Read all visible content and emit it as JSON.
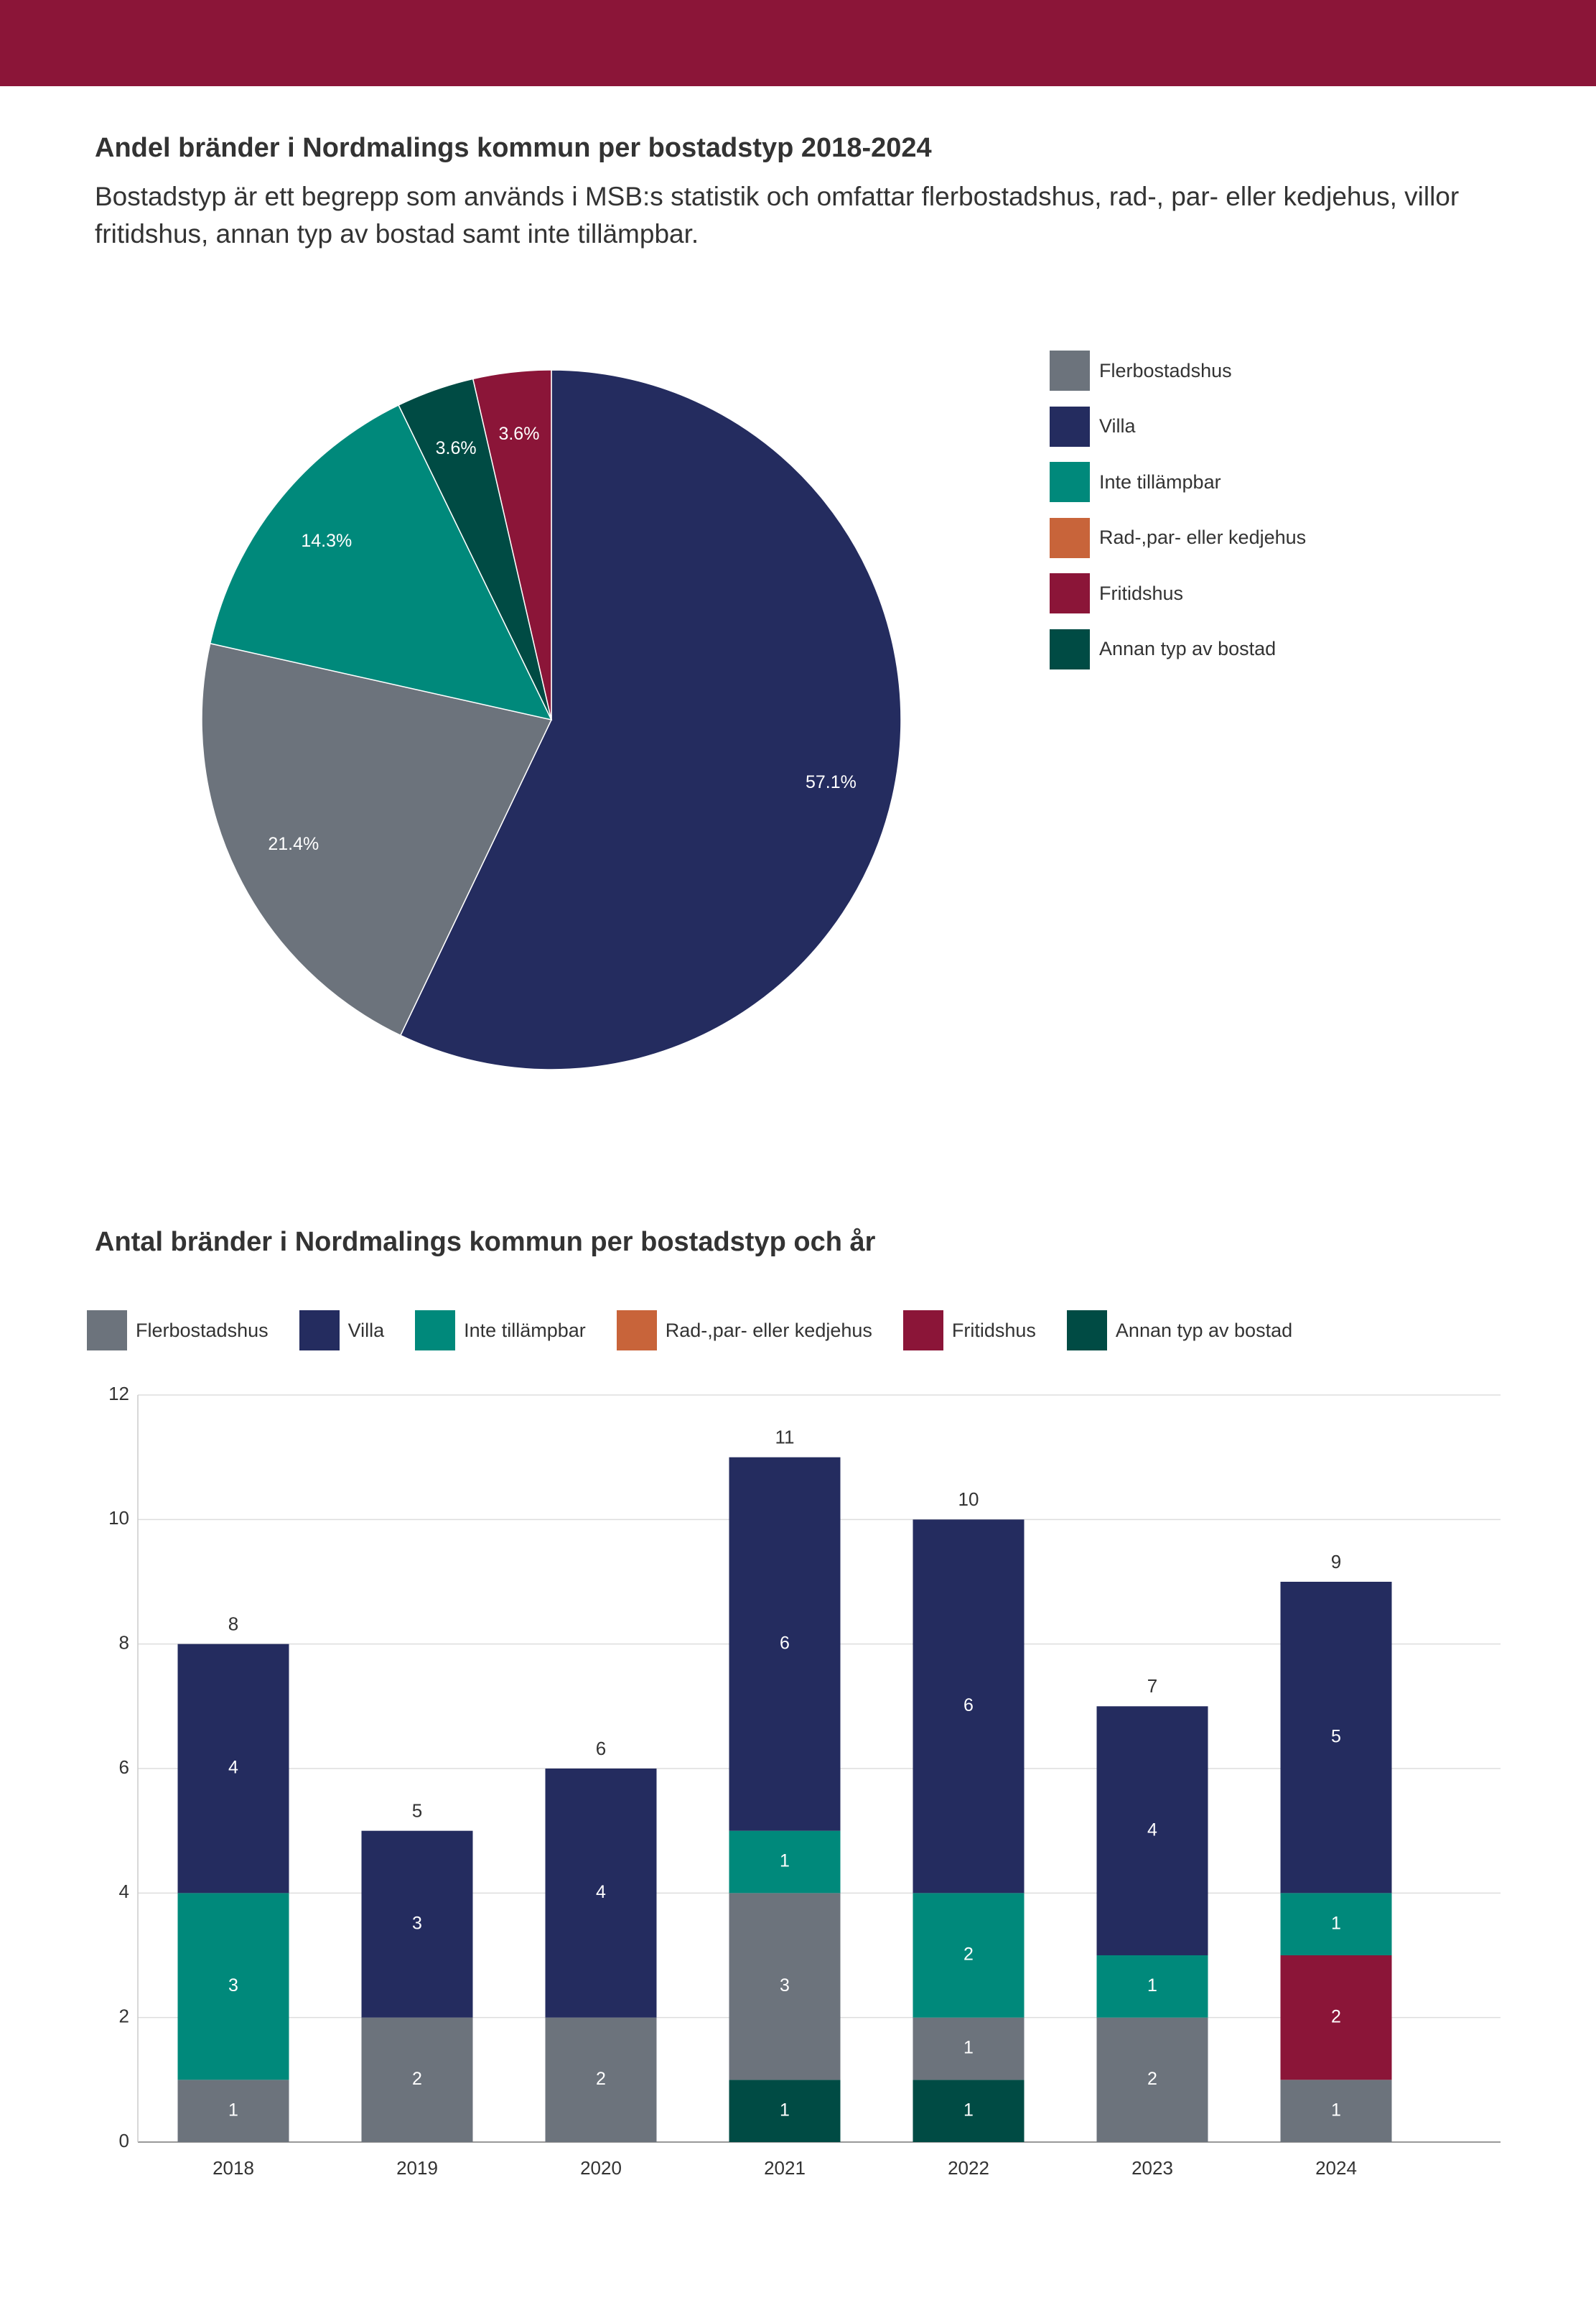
{
  "header": {
    "bar_color": "#8b1538"
  },
  "section1": {
    "title": "Andel bränder i Nordmalings kommun per bostadstyp 2018-2024",
    "subtitle": "Bostadstyp är ett begrepp som används i MSB:s statistik och omfattar flerbostadshus, rad-, par- eller kedjehus, villor fritidshus, annan typ av bostad samt inte tillämpbar."
  },
  "section2": {
    "title": "Antal bränder i Nordmalings kommun per bostadstyp och år"
  },
  "colors": {
    "Flerbostadshus": "#6c737c",
    "Villa": "#242c5f",
    "Inte tillämpbar": "#00897b",
    "Rad-,par- eller kedjehus": "#c8643a",
    "Fritidshus": "#8b1538",
    "Annan typ av bostad": "#004b44"
  },
  "chart_data": [
    {
      "type": "pie",
      "title": "Andel bränder i Nordmalings kommun per bostadstyp 2018-2024",
      "legend_position": "right",
      "legend": [
        "Flerbostadshus",
        "Villa",
        "Inte tillämpbar",
        "Rad-,par- eller kedjehus",
        "Fritidshus",
        "Annan typ av bostad"
      ],
      "slices": [
        {
          "name": "Villa",
          "value": 57.1,
          "label": "57.1%"
        },
        {
          "name": "Flerbostadshus",
          "value": 21.4,
          "label": "21.4%"
        },
        {
          "name": "Inte tillämpbar",
          "value": 14.3,
          "label": "14.3%"
        },
        {
          "name": "Annan typ av bostad",
          "value": 3.6,
          "label": "3.6%"
        },
        {
          "name": "Fritidshus",
          "value": 3.6,
          "label": "3.6%"
        }
      ]
    },
    {
      "type": "bar",
      "stacked": true,
      "title": "Antal bränder i Nordmalings kommun per bostadstyp och år",
      "legend_position": "top",
      "categories": [
        "2018",
        "2019",
        "2020",
        "2021",
        "2022",
        "2023",
        "2024"
      ],
      "ylim": [
        0,
        12
      ],
      "yticks": [
        0,
        2,
        4,
        6,
        8,
        10,
        12
      ],
      "grid": true,
      "series": [
        {
          "name": "Annan typ av bostad",
          "values": [
            0,
            0,
            0,
            1,
            1,
            0,
            0
          ]
        },
        {
          "name": "Flerbostadshus",
          "values": [
            1,
            2,
            2,
            3,
            1,
            2,
            1
          ]
        },
        {
          "name": "Fritidshus",
          "values": [
            0,
            0,
            0,
            0,
            0,
            0,
            2
          ]
        },
        {
          "name": "Rad-,par- eller kedjehus",
          "values": [
            0,
            0,
            0,
            0,
            0,
            0,
            0
          ]
        },
        {
          "name": "Inte tillämpbar",
          "values": [
            3,
            0,
            0,
            1,
            2,
            1,
            1
          ]
        },
        {
          "name": "Villa",
          "values": [
            4,
            3,
            4,
            6,
            6,
            4,
            5
          ]
        }
      ],
      "totals": [
        8,
        5,
        6,
        11,
        10,
        7,
        9
      ]
    }
  ]
}
